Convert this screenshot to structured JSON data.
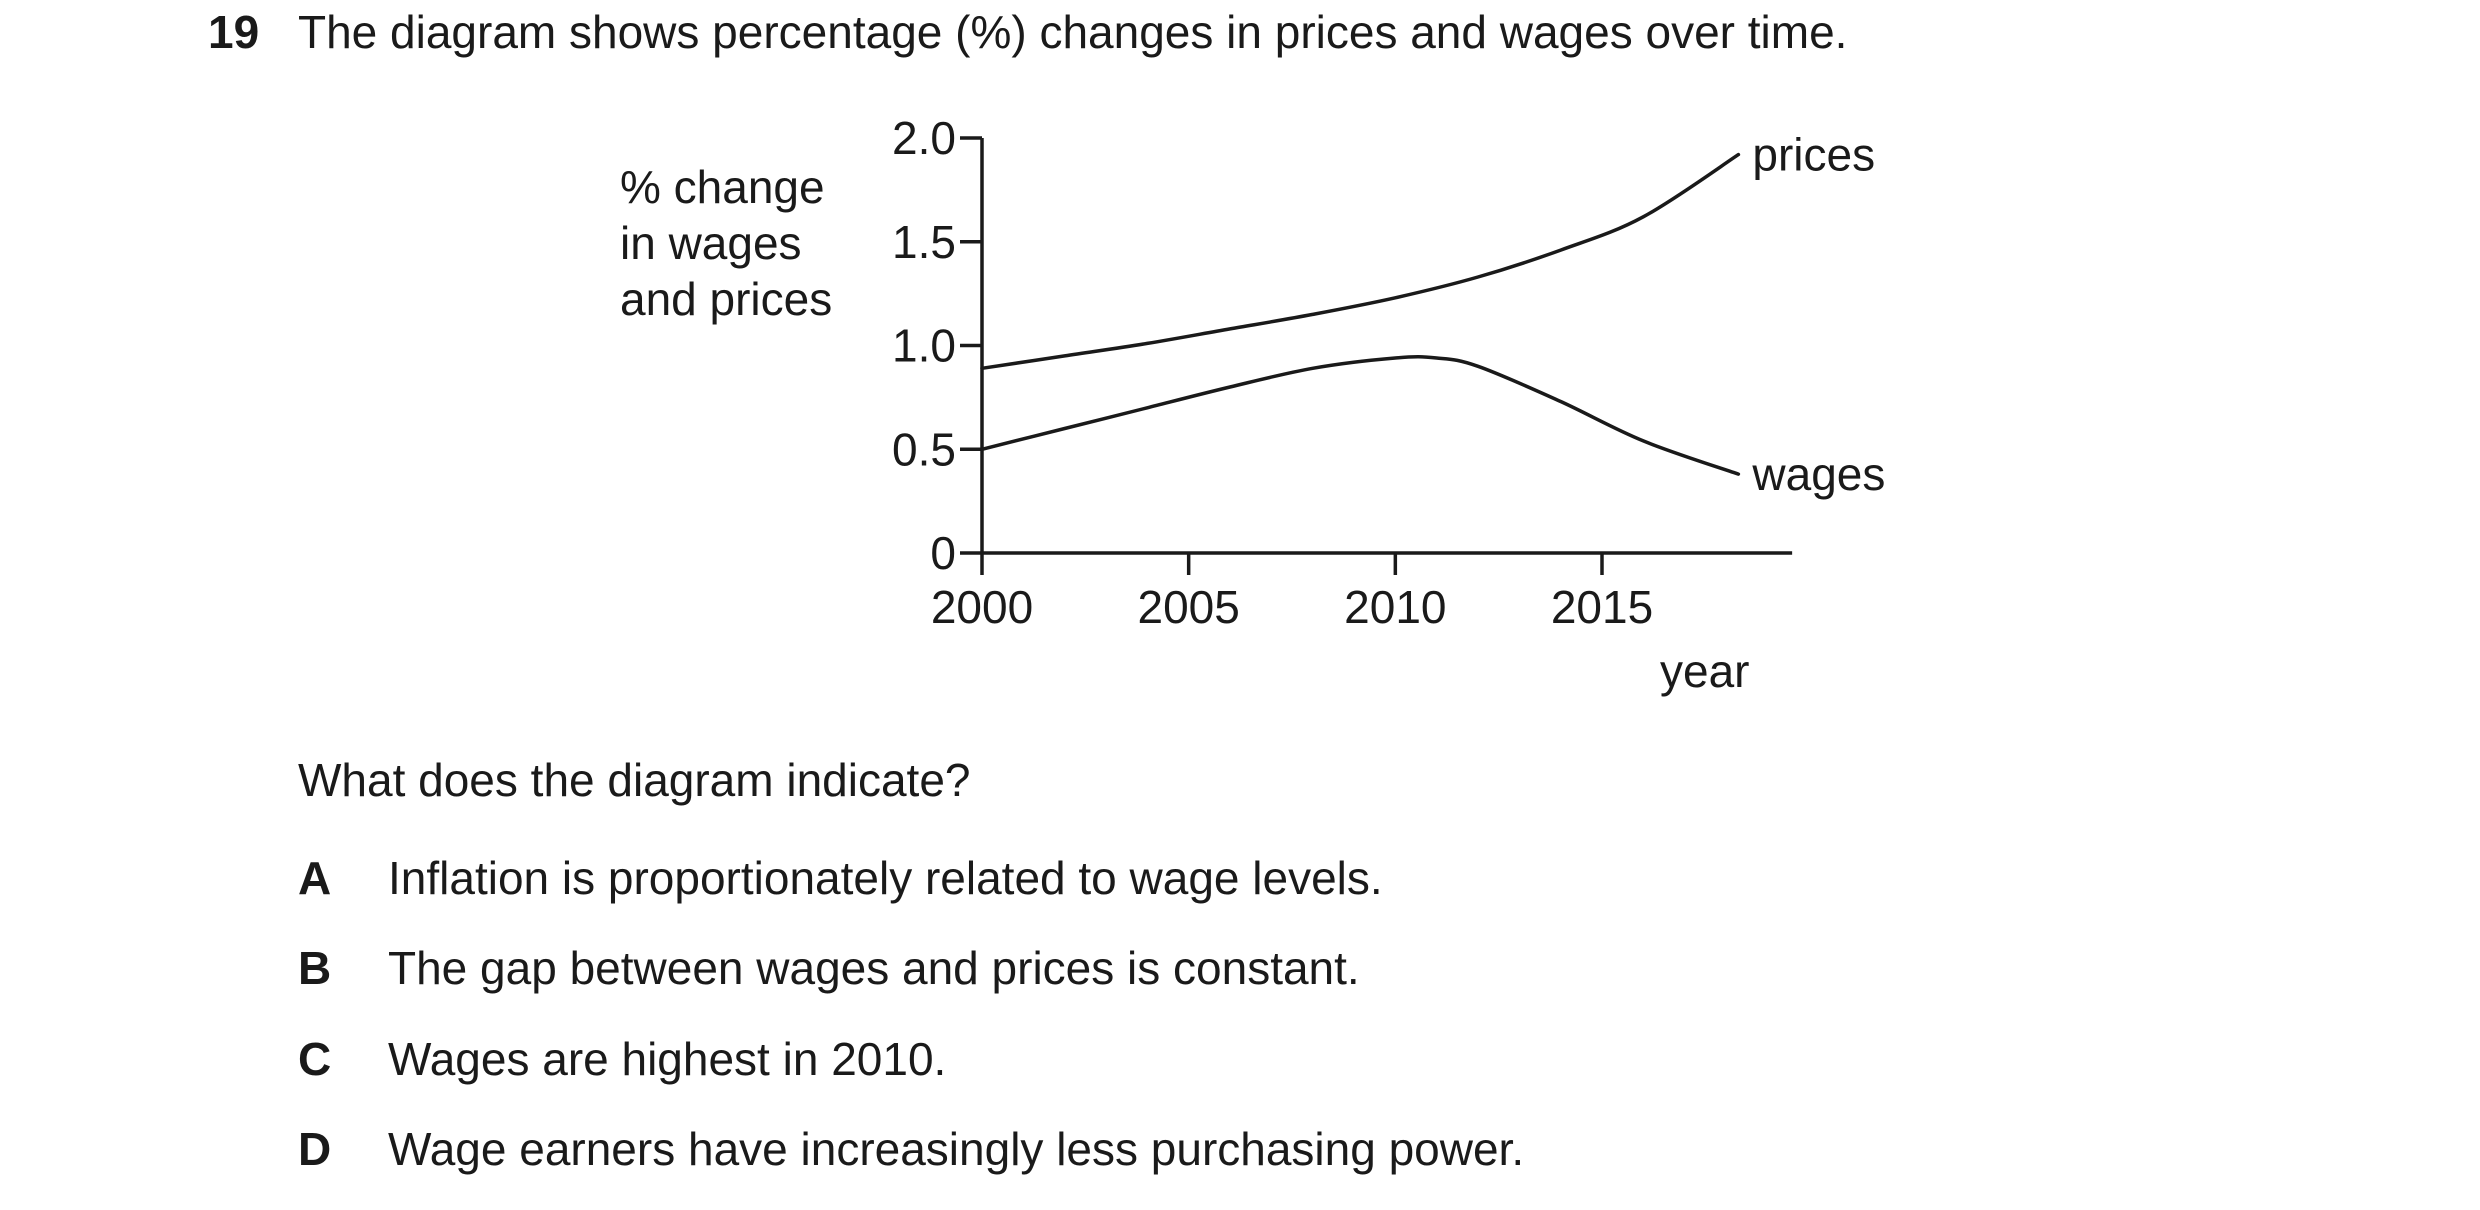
{
  "question": {
    "number": "19",
    "stem": "The diagram shows percentage (%) changes in prices and wages over time.",
    "prompt": "What does the diagram indicate?",
    "options": [
      {
        "letter": "A",
        "text": "Inflation is proportionately related to wage levels."
      },
      {
        "letter": "B",
        "text": "The gap between wages and prices is constant."
      },
      {
        "letter": "C",
        "text": "Wages are highest in 2010."
      },
      {
        "letter": "D",
        "text": "Wage earners have increasingly less purchasing power."
      }
    ]
  },
  "chart_data": {
    "type": "line",
    "title": "",
    "xlabel": "year",
    "ylabel_lines": [
      "% change",
      "in wages",
      "and prices"
    ],
    "xlim": [
      2000,
      2020
    ],
    "ylim": [
      0,
      2.0
    ],
    "x_ticks": [
      2000,
      2005,
      2010,
      2015
    ],
    "x_tick_labels": [
      "2000",
      "2005",
      "2010",
      "2015"
    ],
    "y_ticks": [
      0,
      0.5,
      1.0,
      1.5,
      2.0
    ],
    "y_tick_labels": [
      "0",
      "0.5",
      "1.0",
      "1.5",
      "2.0"
    ],
    "grid": false,
    "legend": "none",
    "series": [
      {
        "name": "prices",
        "x": [
          2000,
          2002,
          2004,
          2006,
          2008,
          2010,
          2012,
          2014,
          2016,
          2018.3
        ],
        "y": [
          0.89,
          0.95,
          1.01,
          1.08,
          1.15,
          1.23,
          1.33,
          1.46,
          1.62,
          1.92
        ]
      },
      {
        "name": "wages",
        "x": [
          2000,
          2002,
          2004,
          2006,
          2008,
          2010,
          2011,
          2012,
          2014,
          2016,
          2018.3
        ],
        "y": [
          0.5,
          0.6,
          0.7,
          0.8,
          0.89,
          0.94,
          0.94,
          0.9,
          0.73,
          0.54,
          0.38
        ]
      }
    ],
    "colors": {
      "line": "#1a1a1a",
      "axis": "#1a1a1a"
    }
  }
}
